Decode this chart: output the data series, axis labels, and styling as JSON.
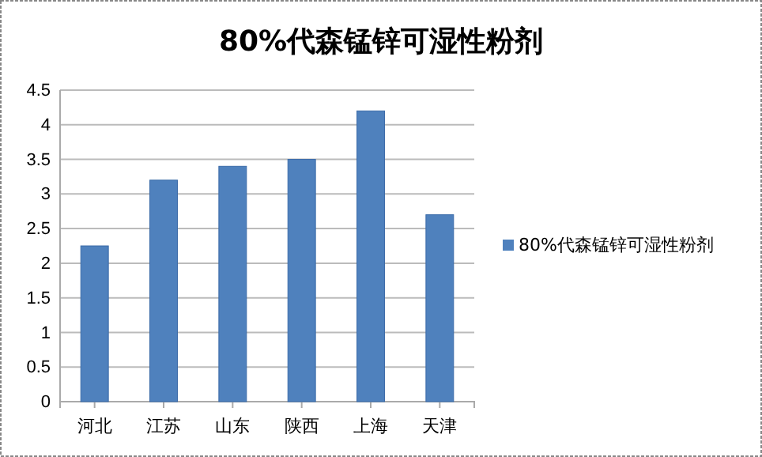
{
  "chart_data": {
    "type": "bar",
    "title": "80%代森锰锌可湿性粉剂",
    "categories": [
      "河北",
      "江苏",
      "山东",
      "陕西",
      "上海",
      "天津"
    ],
    "series": [
      {
        "name": "80%代森锰锌可湿性粉剂",
        "color": "#4f81bd",
        "values": [
          2.25,
          3.2,
          3.4,
          3.5,
          4.2,
          2.7
        ]
      }
    ],
    "ylim": [
      0,
      4.5
    ],
    "yticks": [
      0,
      0.5,
      1,
      1.5,
      2,
      2.5,
      3,
      3.5,
      4,
      4.5
    ],
    "grid": "y",
    "legend": "right"
  }
}
